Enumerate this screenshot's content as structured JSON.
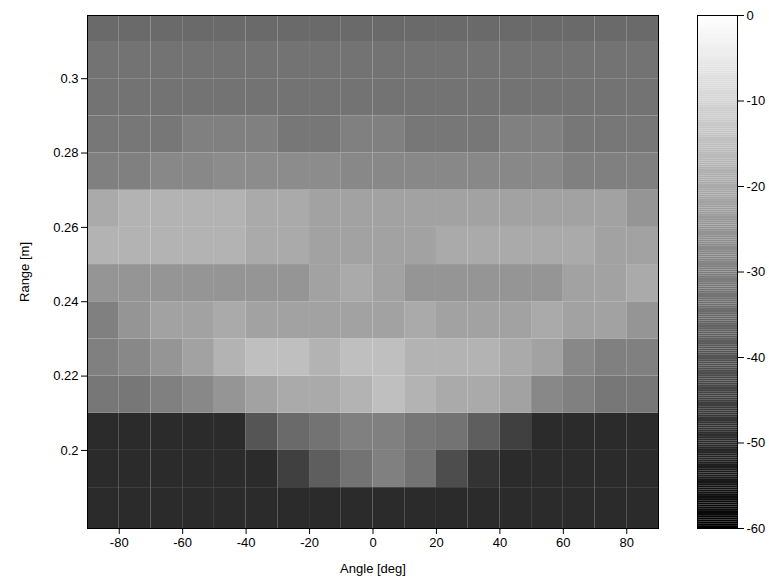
{
  "chart_data": {
    "type": "heatmap",
    "x_label": "Angle [deg]",
    "y_label": "Range [m]",
    "xlim": [
      -90,
      90
    ],
    "xticks": [
      -80,
      -60,
      -40,
      -20,
      0,
      20,
      40,
      60,
      80
    ],
    "ylim": [
      0.179,
      0.317
    ],
    "yticks": [
      0.2,
      0.22,
      0.24,
      0.26,
      0.28,
      0.3
    ],
    "x_bins": [
      -90,
      -80,
      -70,
      -60,
      -50,
      -40,
      -30,
      -20,
      -10,
      0,
      10,
      20,
      30,
      40,
      50,
      60,
      70,
      80,
      90
    ],
    "y_bins": [
      0.179,
      0.19,
      0.2,
      0.21,
      0.22,
      0.23,
      0.24,
      0.25,
      0.26,
      0.27,
      0.28,
      0.29,
      0.3,
      0.31,
      0.317
    ],
    "values": [
      [
        -50,
        -50,
        -50,
        -50,
        -50,
        -50,
        -50,
        -50,
        -50,
        -50,
        -50,
        -50,
        -50,
        -50,
        -50,
        -50,
        -50,
        -50
      ],
      [
        -50,
        -50,
        -50,
        -50,
        -50,
        -50,
        -45,
        -38,
        -33,
        -30,
        -33,
        -42,
        -48,
        -50,
        -50,
        -50,
        -50,
        -50
      ],
      [
        -50,
        -50,
        -50,
        -50,
        -50,
        -40,
        -35,
        -33,
        -30,
        -30,
        -32,
        -33,
        -38,
        -45,
        -50,
        -50,
        -50,
        -50
      ],
      [
        -32,
        -32,
        -30,
        -28,
        -25,
        -22,
        -20,
        -20,
        -18,
        -15,
        -18,
        -20,
        -20,
        -22,
        -28,
        -30,
        -32,
        -32
      ],
      [
        -30,
        -28,
        -25,
        -22,
        -18,
        -15,
        -15,
        -18,
        -15,
        -15,
        -18,
        -18,
        -18,
        -20,
        -22,
        -28,
        -30,
        -30
      ],
      [
        -30,
        -25,
        -22,
        -22,
        -20,
        -22,
        -22,
        -22,
        -22,
        -22,
        -20,
        -22,
        -22,
        -22,
        -20,
        -22,
        -22,
        -25
      ],
      [
        -25,
        -25,
        -25,
        -25,
        -25,
        -25,
        -25,
        -22,
        -20,
        -22,
        -25,
        -25,
        -25,
        -25,
        -25,
        -22,
        -22,
        -20
      ],
      [
        -18,
        -18,
        -18,
        -18,
        -18,
        -20,
        -20,
        -22,
        -22,
        -22,
        -22,
        -20,
        -20,
        -20,
        -20,
        -20,
        -22,
        -22
      ],
      [
        -20,
        -18,
        -18,
        -18,
        -18,
        -20,
        -20,
        -22,
        -22,
        -22,
        -22,
        -22,
        -22,
        -22,
        -22,
        -22,
        -22,
        -25
      ],
      [
        -30,
        -30,
        -28,
        -28,
        -27,
        -27,
        -27,
        -27,
        -28,
        -28,
        -28,
        -28,
        -28,
        -28,
        -28,
        -30,
        -30,
        -30
      ],
      [
        -32,
        -32,
        -32,
        -30,
        -30,
        -30,
        -32,
        -32,
        -30,
        -30,
        -32,
        -32,
        -32,
        -30,
        -30,
        -32,
        -32,
        -32
      ],
      [
        -33,
        -33,
        -33,
        -33,
        -33,
        -33,
        -33,
        -33,
        -33,
        -33,
        -33,
        -33,
        -33,
        -33,
        -33,
        -33,
        -33,
        -33
      ],
      [
        -33,
        -33,
        -33,
        -33,
        -33,
        -33,
        -33,
        -33,
        -33,
        -33,
        -33,
        -33,
        -33,
        -33,
        -33,
        -33,
        -33,
        -33
      ],
      [
        -35,
        -35,
        -35,
        -35,
        -35,
        -35,
        -35,
        -35,
        -35,
        -35,
        -35,
        -35,
        -35,
        -35,
        -35,
        -35,
        -35,
        -35
      ]
    ],
    "colorbar": {
      "lim": [
        -60,
        0
      ],
      "ticks": [
        0,
        -10,
        -20,
        -30,
        -40,
        -50,
        -60
      ]
    },
    "color": "gray"
  }
}
